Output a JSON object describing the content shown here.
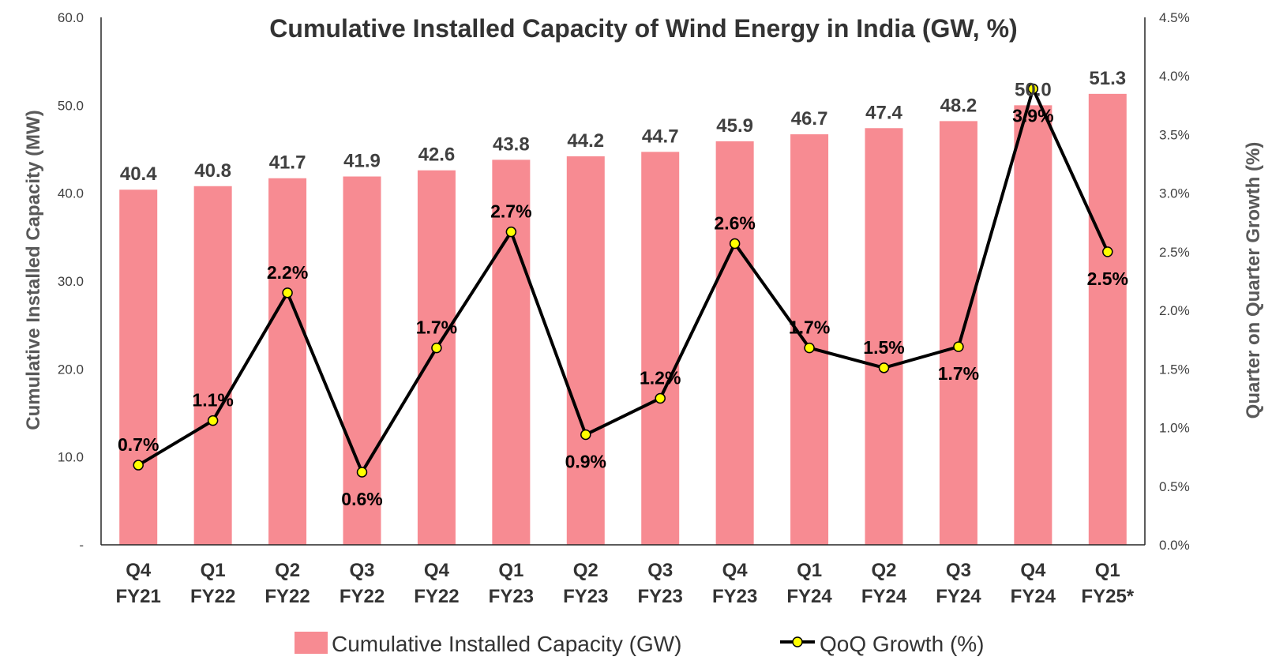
{
  "chart_data": {
    "type": "bar",
    "title": "Cumulative Installed Capacity of Wind Energy in India (GW, %)",
    "ylabel": "Cumulative Installed Capacity (MW)",
    "y2label": "Quarter on Quarter Growth (%)",
    "ylim": [
      0,
      60
    ],
    "y2lim": [
      0,
      4.5
    ],
    "yticks": [
      "-",
      "10.0",
      "20.0",
      "30.0",
      "40.0",
      "50.0",
      "60.0"
    ],
    "y2ticks": [
      "0.0%",
      "0.5%",
      "1.0%",
      "1.5%",
      "2.0%",
      "2.5%",
      "3.0%",
      "3.5%",
      "4.0%",
      "4.5%"
    ],
    "categories": [
      [
        "Q4",
        "FY21"
      ],
      [
        "Q1",
        "FY22"
      ],
      [
        "Q2",
        "FY22"
      ],
      [
        "Q3",
        "FY22"
      ],
      [
        "Q4",
        "FY22"
      ],
      [
        "Q1",
        "FY23"
      ],
      [
        "Q2",
        "FY23"
      ],
      [
        "Q3",
        "FY23"
      ],
      [
        "Q4",
        "FY23"
      ],
      [
        "Q1",
        "FY24"
      ],
      [
        "Q2",
        "FY24"
      ],
      [
        "Q3",
        "FY24"
      ],
      [
        "Q4",
        "FY24"
      ],
      [
        "Q1",
        "FY25*"
      ]
    ],
    "series": [
      {
        "name": "Cumulative Installed Capacity (GW)",
        "type": "bar",
        "axis": "left",
        "color": "#F78B92",
        "values": [
          40.4,
          40.8,
          41.7,
          41.9,
          42.6,
          43.8,
          44.2,
          44.7,
          45.9,
          46.7,
          47.4,
          48.2,
          50.0,
          51.3
        ],
        "labels": [
          "40.4",
          "40.8",
          "41.7",
          "41.9",
          "42.6",
          "43.8",
          "44.2",
          "44.7",
          "45.9",
          "46.7",
          "47.4",
          "48.2",
          "50.0",
          "51.3"
        ]
      },
      {
        "name": "QoQ Growth (%)",
        "type": "line",
        "axis": "right",
        "color": "#000000",
        "marker_color": "#FFFF00",
        "values": [
          0.68,
          1.06,
          2.15,
          0.62,
          1.68,
          2.67,
          0.94,
          1.25,
          2.57,
          1.68,
          1.51,
          1.69,
          3.89,
          2.5
        ],
        "labels": [
          "0.7%",
          "1.1%",
          "2.2%",
          "0.6%",
          "1.7%",
          "2.7%",
          "0.9%",
          "1.2%",
          "2.6%",
          "1.7%",
          "1.5%",
          "1.7%",
          "3.9%",
          "2.5%"
        ],
        "label_pos": [
          "above",
          "above",
          "above",
          "below",
          "above",
          "above",
          "below",
          "above",
          "above",
          "above",
          "above",
          "below",
          "below",
          "below"
        ]
      }
    ],
    "legend": "bottom",
    "grid": false
  }
}
